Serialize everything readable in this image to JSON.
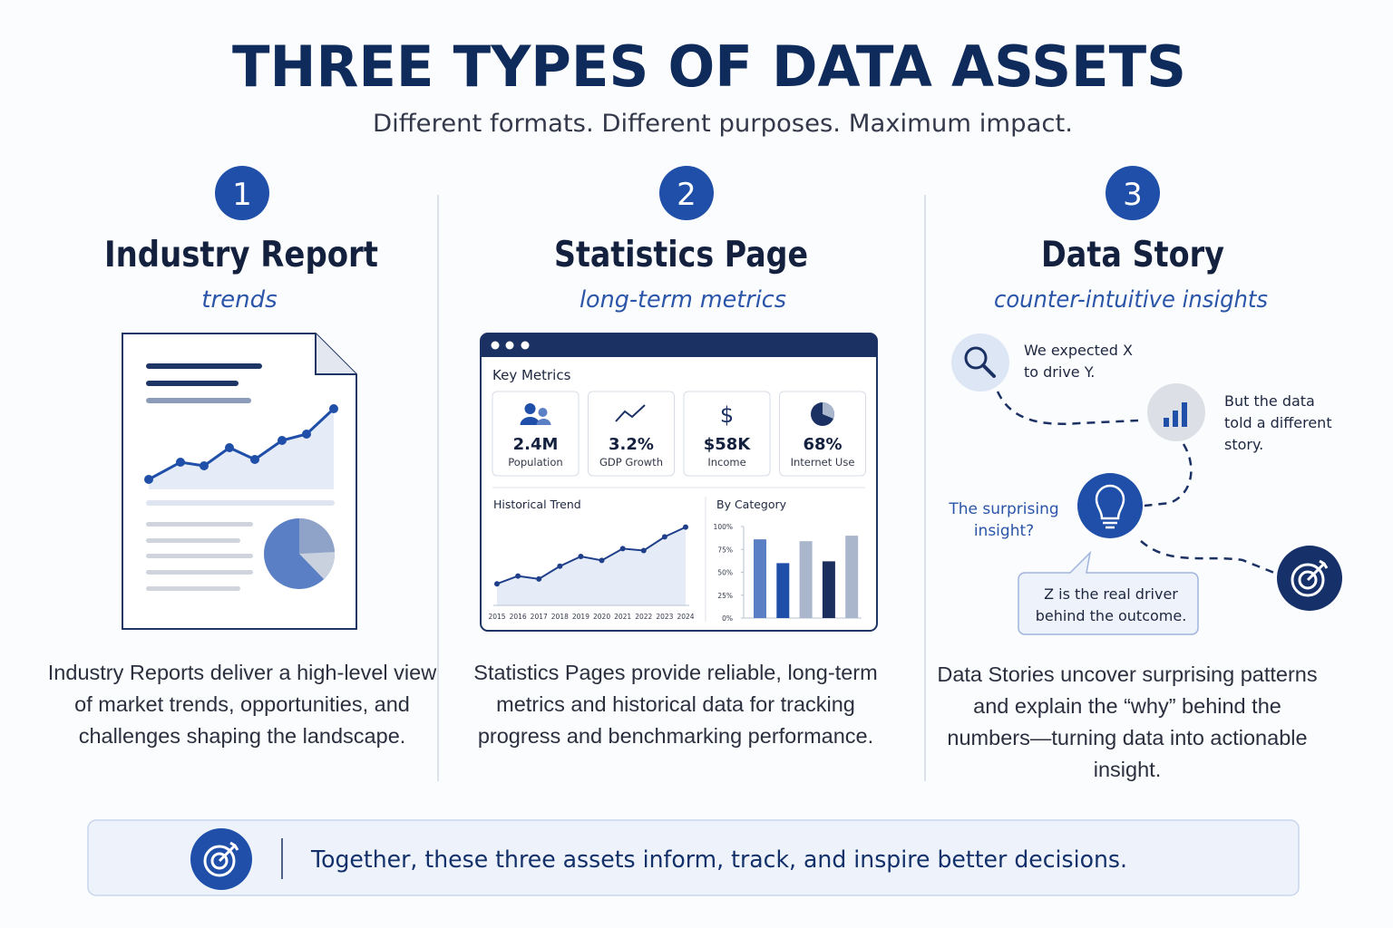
{
  "header": {
    "title": "THREE TYPES OF DATA ASSETS",
    "subtitle": "Different formats. Different purposes. Maximum impact."
  },
  "columns": [
    {
      "number": "1",
      "title": "Industry Report",
      "tagline": "trends",
      "description": "Industry Reports deliver a high-level view of market trends, opportunities, and challenges shaping the landscape."
    },
    {
      "number": "2",
      "title": "Statistics Page",
      "tagline": "long-term metrics",
      "description": "Statistics Pages provide reliable, long-term metrics and historical data for tracking progress and benchmarking performance."
    },
    {
      "number": "3",
      "title": "Data Story",
      "tagline": "counter-intuitive insights",
      "description": "Data Stories uncover surprising patterns and explain the “why” behind the numbers—turning data into actionable insight."
    }
  ],
  "stats_panel": {
    "title": "Key Metrics",
    "metrics": [
      {
        "value": "2.4M",
        "label": "Population"
      },
      {
        "value": "3.2%",
        "label": "GDP Growth"
      },
      {
        "value": "$58K",
        "label": "Income"
      },
      {
        "value": "68%",
        "label": "Internet Use"
      }
    ],
    "trend": {
      "type": "line",
      "title": "Historical Trend",
      "categories": [
        "2015",
        "2016",
        "2017",
        "2018",
        "2019",
        "2020",
        "2021",
        "2022",
        "2023",
        "2024"
      ],
      "values": [
        22,
        30,
        27,
        40,
        50,
        46,
        58,
        56,
        70,
        80
      ],
      "ylim": [
        0,
        100
      ],
      "color": "#1f3f8a"
    },
    "category": {
      "type": "bar",
      "title": "By Category",
      "values": [
        86,
        60,
        84,
        62,
        90
      ],
      "colors": [
        "#5b7fc4",
        "#1f4fa8",
        "#a9b6cc",
        "#1b2f5e",
        "#a9b6cc"
      ],
      "ylim": [
        0,
        100
      ],
      "yticks": [
        {
          "value": 100,
          "label": "100%"
        },
        {
          "value": 75,
          "label": "75%"
        },
        {
          "value": 50,
          "label": "50%"
        },
        {
          "value": 25,
          "label": "25%"
        },
        {
          "value": 0,
          "label": "0%"
        }
      ]
    }
  },
  "story": {
    "expected": "We expected X to drive Y.",
    "data": "But the data told a different story.",
    "question": "The surprising insight?",
    "answer": "Z is the real driver behind the outcome."
  },
  "footer": {
    "text": "Together, these three assets inform, track, and inspire better decisions."
  }
}
